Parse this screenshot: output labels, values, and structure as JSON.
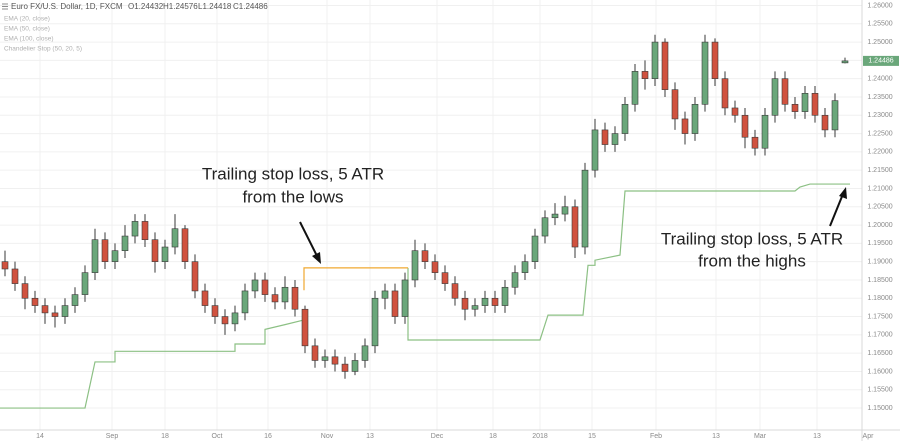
{
  "chart_data": {
    "type": "candlestick",
    "title": "Euro FX/U.S. Dollar, 1D, FXCM",
    "readout": [
      "O1.24432",
      "H1.24576",
      "L1.24418",
      "C1.24486"
    ],
    "indicators": [
      "EMA (20, close)",
      "EMA (50, close)",
      "EMA (100, close)",
      "Chandelier Stop (50, 20, 5)"
    ],
    "open": [
      1.19,
      1.188,
      1.184,
      1.18,
      1.178,
      1.176,
      1.175,
      1.178,
      1.181,
      1.187,
      1.196,
      1.19,
      1.193,
      1.197,
      1.201,
      1.196,
      1.19,
      1.194,
      1.199,
      1.19,
      1.182,
      1.178,
      1.175,
      1.173,
      1.176,
      1.182,
      1.185,
      1.181,
      1.179,
      1.183,
      1.177,
      1.167,
      1.163,
      1.164,
      1.162,
      1.16,
      1.163,
      1.167,
      1.18,
      1.182,
      1.175,
      1.185,
      1.193,
      1.19,
      1.187,
      1.184,
      1.18,
      1.177,
      1.178,
      1.18,
      1.178,
      1.183,
      1.187,
      1.19,
      1.197,
      1.202,
      1.203,
      1.205,
      1.194,
      1.215,
      1.226,
      1.222,
      1.225,
      1.233,
      1.242,
      1.24,
      1.25,
      1.237,
      1.229,
      1.225,
      1.233,
      1.25,
      1.24,
      1.232,
      1.23,
      1.224,
      1.221,
      1.23,
      1.24,
      1.233,
      1.231,
      1.236,
      1.23,
      1.226,
      1.24432
    ],
    "high": [
      1.193,
      1.19,
      1.186,
      1.182,
      1.18,
      1.178,
      1.18,
      1.183,
      1.189,
      1.199,
      1.198,
      1.195,
      1.2,
      1.203,
      1.203,
      1.198,
      1.196,
      1.203,
      1.2,
      1.192,
      1.184,
      1.18,
      1.177,
      1.178,
      1.184,
      1.187,
      1.187,
      1.183,
      1.186,
      1.185,
      1.178,
      1.169,
      1.166,
      1.166,
      1.164,
      1.165,
      1.169,
      1.182,
      1.184,
      1.184,
      1.187,
      1.196,
      1.195,
      1.192,
      1.189,
      1.186,
      1.182,
      1.18,
      1.182,
      1.182,
      1.185,
      1.189,
      1.192,
      1.199,
      1.204,
      1.206,
      1.208,
      1.207,
      1.217,
      1.229,
      1.228,
      1.227,
      1.235,
      1.244,
      1.245,
      1.252,
      1.251,
      1.239,
      1.231,
      1.235,
      1.252,
      1.251,
      1.242,
      1.234,
      1.232,
      1.226,
      1.232,
      1.242,
      1.242,
      1.235,
      1.238,
      1.238,
      1.232,
      1.236,
      1.24576
    ],
    "low": [
      1.186,
      1.182,
      1.177,
      1.176,
      1.173,
      1.172,
      1.173,
      1.176,
      1.179,
      1.185,
      1.188,
      1.188,
      1.191,
      1.195,
      1.194,
      1.187,
      1.188,
      1.192,
      1.188,
      1.18,
      1.176,
      1.173,
      1.17,
      1.171,
      1.174,
      1.18,
      1.179,
      1.177,
      1.177,
      1.175,
      1.165,
      1.161,
      1.161,
      1.16,
      1.158,
      1.159,
      1.161,
      1.165,
      1.177,
      1.173,
      1.173,
      1.183,
      1.188,
      1.185,
      1.182,
      1.178,
      1.174,
      1.175,
      1.176,
      1.176,
      1.176,
      1.181,
      1.185,
      1.188,
      1.195,
      1.2,
      1.201,
      1.191,
      1.192,
      1.213,
      1.22,
      1.22,
      1.223,
      1.231,
      1.237,
      1.238,
      1.235,
      1.226,
      1.222,
      1.223,
      1.231,
      1.238,
      1.23,
      1.228,
      1.221,
      1.219,
      1.219,
      1.228,
      1.231,
      1.229,
      1.229,
      1.228,
      1.224,
      1.224,
      1.24418
    ],
    "close": [
      1.188,
      1.184,
      1.18,
      1.178,
      1.176,
      1.175,
      1.178,
      1.181,
      1.187,
      1.196,
      1.19,
      1.193,
      1.197,
      1.201,
      1.196,
      1.19,
      1.194,
      1.199,
      1.19,
      1.182,
      1.178,
      1.175,
      1.173,
      1.176,
      1.182,
      1.185,
      1.181,
      1.179,
      1.183,
      1.177,
      1.167,
      1.163,
      1.164,
      1.162,
      1.16,
      1.163,
      1.167,
      1.18,
      1.182,
      1.175,
      1.185,
      1.193,
      1.19,
      1.187,
      1.184,
      1.18,
      1.177,
      1.178,
      1.18,
      1.178,
      1.183,
      1.187,
      1.19,
      1.197,
      1.202,
      1.203,
      1.205,
      1.194,
      1.215,
      1.226,
      1.222,
      1.225,
      1.233,
      1.242,
      1.24,
      1.25,
      1.237,
      1.229,
      1.225,
      1.233,
      1.25,
      1.24,
      1.232,
      1.23,
      1.224,
      1.221,
      1.23,
      1.24,
      1.233,
      1.231,
      1.236,
      1.23,
      1.226,
      1.234,
      1.24486
    ],
    "up_color": "#6aa77a",
    "down_color": "#d0523f",
    "stop_lines": [
      {
        "color": "#8cc084",
        "x": [
          -0.5,
          8,
          9,
          11,
          11,
          23,
          23,
          26,
          26,
          28,
          29.8,
          35,
          40.3,
          40.3,
          53.5,
          54.3,
          57.8,
          58.3,
          59,
          59,
          61.5,
          62,
          79,
          79.5,
          80.5,
          84.5
        ],
        "values": [
          1.15,
          1.15,
          1.1626,
          1.1626,
          1.1655,
          1.1655,
          1.1675,
          1.1675,
          1.1715,
          1.1728,
          1.174,
          null,
          1.1883,
          1.1686,
          1.1686,
          1.1754,
          1.1754,
          1.189,
          1.189,
          1.1904,
          1.1918,
          1.2093,
          1.2093,
          1.2104,
          1.2112,
          1.2112
        ]
      },
      {
        "color": "#f0a830",
        "x": [
          29.9,
          29.9,
          40.3
        ],
        "values": [
          1.1822,
          1.1883,
          1.1883
        ]
      }
    ],
    "xlim": [
      -0.5,
      85.7
    ],
    "xticks": [
      {
        "value": 3.5,
        "label": "14"
      },
      {
        "value": 10.7,
        "label": "Sep"
      },
      {
        "value": 16,
        "label": "18"
      },
      {
        "value": 21.2,
        "label": "Oct"
      },
      {
        "value": 26.3,
        "label": "16"
      },
      {
        "value": 32.2,
        "label": "Nov"
      },
      {
        "value": 36.5,
        "label": "13"
      },
      {
        "value": 43.2,
        "label": "Dec"
      },
      {
        "value": 48.8,
        "label": "18"
      },
      {
        "value": 53.5,
        "label": "2018"
      },
      {
        "value": 58.7,
        "label": "15"
      },
      {
        "value": 65.1,
        "label": "Feb"
      },
      {
        "value": 71.1,
        "label": "13"
      },
      {
        "value": 75.5,
        "label": "Mar"
      },
      {
        "value": 81.2,
        "label": "13"
      },
      {
        "value": 86.3,
        "label": "Apr"
      }
    ],
    "ylim": [
      1.144,
      1.2615
    ],
    "yticks": [
      {
        "value": 1.15,
        "label": "1.15000"
      },
      {
        "value": 1.155,
        "label": "1.15500"
      },
      {
        "value": 1.16,
        "label": "1.16000"
      },
      {
        "value": 1.165,
        "label": "1.16500"
      },
      {
        "value": 1.17,
        "label": "1.17000"
      },
      {
        "value": 1.175,
        "label": "1.17500"
      },
      {
        "value": 1.18,
        "label": "1.18000"
      },
      {
        "value": 1.185,
        "label": "1.18500"
      },
      {
        "value": 1.19,
        "label": "1.19000"
      },
      {
        "value": 1.195,
        "label": "1.19500"
      },
      {
        "value": 1.2,
        "label": "1.20000"
      },
      {
        "value": 1.205,
        "label": "1.20500"
      },
      {
        "value": 1.21,
        "label": "1.21000"
      },
      {
        "value": 1.215,
        "label": "1.21500"
      },
      {
        "value": 1.22,
        "label": "1.22000"
      },
      {
        "value": 1.225,
        "label": "1.22500"
      },
      {
        "value": 1.23,
        "label": "1.23000"
      },
      {
        "value": 1.235,
        "label": "1.23500"
      },
      {
        "value": 1.24,
        "label": "1.24000"
      },
      {
        "value": 1.245,
        "label": "1.24500"
      },
      {
        "value": 1.25,
        "label": "1.25000"
      },
      {
        "value": 1.255,
        "label": "1.25500"
      },
      {
        "value": 1.26,
        "label": "1.26000"
      }
    ],
    "grid": true,
    "annotations": [
      {
        "lines": [
          "Trailing stop loss, 5 ATR",
          "from the lows"
        ]
      },
      {
        "lines": [
          "Trailing stop loss, 5 ATR",
          "from the highs"
        ]
      }
    ]
  }
}
